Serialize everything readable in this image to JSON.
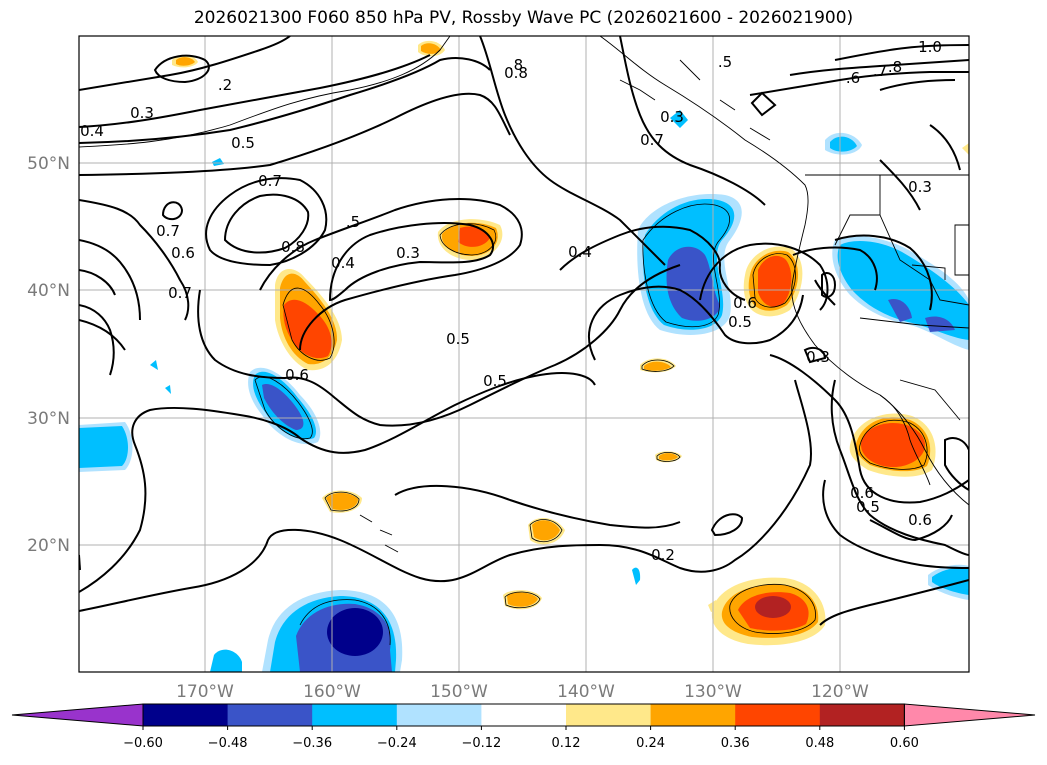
{
  "title": "2026021300 F060 850 hPa PV, Rossby Wave PC (2026021600 - 2026021900)",
  "lat_labels": [
    "50°N",
    "40°N",
    "30°N",
    "20°N"
  ],
  "lon_labels": [
    "170°W",
    "160°W",
    "150°W",
    "140°W",
    "130°W",
    "120°W"
  ],
  "contour_labels": [
    "1.0",
    ".5",
    ".8",
    ".6",
    ".7",
    ".8",
    ".2",
    "0.3",
    "0.4",
    "0.5",
    "0.7",
    ".5",
    "0.7",
    "0.6",
    "0.7",
    "0.8",
    "0.5",
    "0.3",
    "0.4",
    "0.8",
    "0.6",
    "0.4",
    "0.5",
    "0.7",
    "0.6",
    "0.5",
    "0.3",
    "0.3",
    "0.6",
    "0.5",
    "0.6",
    "0.2",
    "0.3"
  ],
  "colorbar": {
    "ticks": [
      "−0.60",
      "−0.48",
      "−0.36",
      "−0.24",
      "−0.12",
      "0.12",
      "0.24",
      "0.36",
      "0.48",
      "0.60"
    ],
    "colors": [
      "#9933cc",
      "#00008b",
      "#3a54c8",
      "#00bfff",
      "#b0e2ff",
      "#ffffff",
      "#ffe88a",
      "#ffa500",
      "#ff4500",
      "#b22222",
      "#ff88aa"
    ]
  },
  "map": {
    "extent_lon": [
      -180,
      -110
    ],
    "extent_lat": [
      10,
      60
    ],
    "field": "850 hPa PV",
    "shading": "Rossby Wave PC"
  }
}
